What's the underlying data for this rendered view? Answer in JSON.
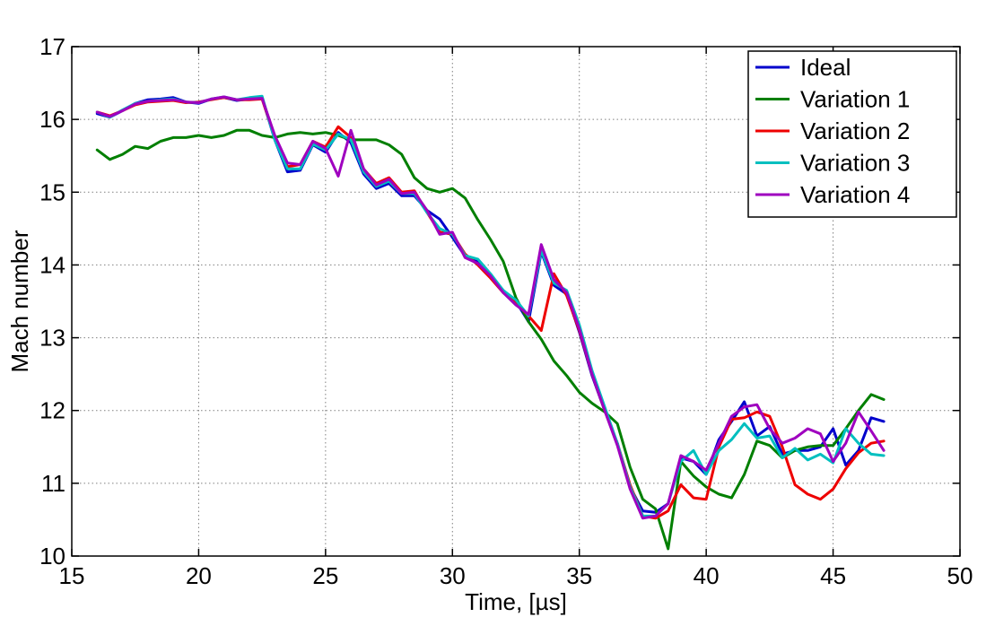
{
  "chart_data": {
    "type": "line",
    "xlabel": "Time, [µs]",
    "ylabel": "Mach number",
    "xlim": [
      15,
      50
    ],
    "ylim": [
      10,
      17
    ],
    "xticks": [
      15,
      20,
      25,
      30,
      35,
      40,
      45,
      50
    ],
    "yticks": [
      10,
      11,
      12,
      13,
      14,
      15,
      16,
      17
    ],
    "grid": true,
    "legend_position": "top-right",
    "series": [
      {
        "name": "Ideal",
        "color": "#0000cc",
        "x": [
          16.0,
          16.5,
          17.0,
          17.5,
          18.0,
          18.5,
          19.0,
          19.5,
          20.0,
          20.5,
          21.0,
          21.5,
          22.0,
          22.5,
          23.0,
          23.5,
          24.0,
          24.5,
          25.0,
          25.5,
          26.0,
          26.5,
          27.0,
          27.5,
          28.0,
          28.5,
          29.0,
          29.5,
          30.0,
          30.5,
          31.0,
          31.5,
          32.0,
          32.5,
          33.0,
          33.5,
          34.0,
          34.5,
          35.0,
          35.5,
          36.0,
          36.5,
          37.0,
          37.5,
          38.0,
          38.5,
          39.0,
          39.5,
          40.0,
          40.5,
          41.0,
          41.5,
          42.0,
          42.5,
          43.0,
          43.5,
          44.0,
          44.5,
          45.0,
          45.5,
          46.0,
          46.5,
          47.0
        ],
        "y": [
          16.08,
          16.03,
          16.12,
          16.22,
          16.27,
          16.28,
          16.3,
          16.24,
          16.22,
          16.28,
          16.3,
          16.26,
          16.28,
          16.3,
          15.72,
          15.28,
          15.3,
          15.65,
          15.55,
          15.82,
          15.68,
          15.25,
          15.05,
          15.12,
          14.95,
          14.95,
          14.75,
          14.63,
          14.38,
          14.12,
          14.05,
          13.85,
          13.65,
          13.5,
          13.22,
          14.18,
          13.72,
          13.6,
          13.08,
          12.48,
          12.0,
          11.55,
          10.95,
          10.62,
          10.6,
          10.72,
          11.35,
          11.3,
          11.12,
          11.6,
          11.85,
          12.12,
          11.65,
          11.78,
          11.4,
          11.45,
          11.45,
          11.5,
          11.75,
          11.25,
          11.45,
          11.9,
          11.85
        ]
      },
      {
        "name": "Variation 1",
        "color": "#007f00",
        "x": [
          16.0,
          16.5,
          17.0,
          17.5,
          18.0,
          18.5,
          19.0,
          19.5,
          20.0,
          20.5,
          21.0,
          21.5,
          22.0,
          22.5,
          23.0,
          23.5,
          24.0,
          24.5,
          25.0,
          25.5,
          26.0,
          26.5,
          27.0,
          27.5,
          28.0,
          28.5,
          29.0,
          29.5,
          30.0,
          30.5,
          31.0,
          31.5,
          32.0,
          32.5,
          33.0,
          33.5,
          34.0,
          34.5,
          35.0,
          35.5,
          36.0,
          36.5,
          37.0,
          37.5,
          38.0,
          38.5,
          39.0,
          39.5,
          40.0,
          40.5,
          41.0,
          41.5,
          42.0,
          42.5,
          43.0,
          43.5,
          44.0,
          44.5,
          45.0,
          45.5,
          46.0,
          46.5,
          47.0
        ],
        "y": [
          15.58,
          15.45,
          15.52,
          15.63,
          15.6,
          15.7,
          15.75,
          15.75,
          15.78,
          15.75,
          15.78,
          15.85,
          15.85,
          15.78,
          15.75,
          15.8,
          15.82,
          15.8,
          15.82,
          15.78,
          15.72,
          15.72,
          15.72,
          15.65,
          15.52,
          15.2,
          15.05,
          15.0,
          15.05,
          14.92,
          14.62,
          14.35,
          14.05,
          13.55,
          13.22,
          12.98,
          12.68,
          12.48,
          12.25,
          12.1,
          11.98,
          11.82,
          11.22,
          10.78,
          10.65,
          10.1,
          11.3,
          11.1,
          10.95,
          10.85,
          10.8,
          11.12,
          11.58,
          11.52,
          11.35,
          11.45,
          11.5,
          11.52,
          11.52,
          11.75,
          12.0,
          12.22,
          12.15
        ]
      },
      {
        "name": "Variation 2",
        "color": "#ee0000",
        "x": [
          16.0,
          16.5,
          17.0,
          17.5,
          18.0,
          18.5,
          19.0,
          19.5,
          20.0,
          20.5,
          21.0,
          21.5,
          22.0,
          22.5,
          23.0,
          23.5,
          24.0,
          24.5,
          25.0,
          25.5,
          26.0,
          26.5,
          27.0,
          27.5,
          28.0,
          28.5,
          29.0,
          29.5,
          30.0,
          30.5,
          31.0,
          31.5,
          32.0,
          32.5,
          33.0,
          33.5,
          34.0,
          34.5,
          35.0,
          35.5,
          36.0,
          36.5,
          37.0,
          37.5,
          38.0,
          38.5,
          39.0,
          39.5,
          40.0,
          40.5,
          41.0,
          41.5,
          42.0,
          42.5,
          43.0,
          43.5,
          44.0,
          44.5,
          45.0,
          45.5,
          46.0,
          46.5,
          47.0
        ],
        "y": [
          16.1,
          16.05,
          16.12,
          16.2,
          16.24,
          16.25,
          16.26,
          16.23,
          16.24,
          16.27,
          16.3,
          16.27,
          16.27,
          16.28,
          15.75,
          15.35,
          15.38,
          15.7,
          15.62,
          15.9,
          15.75,
          15.32,
          15.12,
          15.2,
          15.0,
          15.02,
          14.72,
          14.45,
          14.42,
          14.15,
          14.0,
          13.82,
          13.62,
          13.48,
          13.3,
          13.1,
          13.88,
          13.58,
          13.1,
          12.5,
          12.0,
          11.55,
          10.98,
          10.55,
          10.52,
          10.62,
          10.98,
          10.8,
          10.78,
          11.5,
          11.88,
          11.9,
          11.98,
          11.92,
          11.5,
          10.98,
          10.85,
          10.78,
          10.92,
          11.2,
          11.42,
          11.55,
          11.58
        ]
      },
      {
        "name": "Variation 3",
        "color": "#00bfbf",
        "x": [
          16.0,
          16.5,
          17.0,
          17.5,
          18.0,
          18.5,
          19.0,
          19.5,
          20.0,
          20.5,
          21.0,
          21.5,
          22.0,
          22.5,
          23.0,
          23.5,
          24.0,
          24.5,
          25.0,
          25.5,
          26.0,
          26.5,
          27.0,
          27.5,
          28.0,
          28.5,
          29.0,
          29.5,
          30.0,
          30.5,
          31.0,
          31.5,
          32.0,
          32.5,
          33.0,
          33.5,
          34.0,
          34.5,
          35.0,
          35.5,
          36.0,
          36.5,
          37.0,
          37.5,
          38.0,
          38.5,
          39.0,
          39.5,
          40.0,
          40.5,
          41.0,
          41.5,
          42.0,
          42.5,
          43.0,
          43.5,
          44.0,
          44.5,
          45.0,
          45.5,
          46.0,
          46.5,
          47.0
        ],
        "y": [
          16.1,
          16.03,
          16.13,
          16.22,
          16.25,
          16.27,
          16.28,
          16.24,
          16.23,
          16.28,
          16.31,
          16.27,
          16.3,
          16.32,
          15.72,
          15.32,
          15.32,
          15.66,
          15.58,
          15.8,
          15.72,
          15.28,
          15.08,
          15.15,
          14.98,
          14.98,
          14.72,
          14.5,
          14.42,
          14.13,
          14.08,
          13.88,
          13.65,
          13.52,
          13.3,
          14.2,
          13.75,
          13.65,
          13.18,
          12.55,
          12.05,
          11.55,
          10.95,
          10.55,
          10.55,
          10.72,
          11.3,
          11.45,
          11.12,
          11.45,
          11.6,
          11.82,
          11.62,
          11.65,
          11.35,
          11.48,
          11.32,
          11.4,
          11.28,
          11.75,
          11.55,
          11.4,
          11.38
        ]
      },
      {
        "name": "Variation 4",
        "color": "#9f00bf",
        "x": [
          16.0,
          16.5,
          17.0,
          17.5,
          18.0,
          18.5,
          19.0,
          19.5,
          20.0,
          20.5,
          21.0,
          21.5,
          22.0,
          22.5,
          23.0,
          23.5,
          24.0,
          24.5,
          25.0,
          25.5,
          26.0,
          26.5,
          27.0,
          27.5,
          28.0,
          28.5,
          29.0,
          29.5,
          30.0,
          30.5,
          31.0,
          31.5,
          32.0,
          32.5,
          33.0,
          33.5,
          34.0,
          34.5,
          35.0,
          35.5,
          36.0,
          36.5,
          37.0,
          37.5,
          38.0,
          38.5,
          39.0,
          39.5,
          40.0,
          40.5,
          41.0,
          41.5,
          42.0,
          42.5,
          43.0,
          43.5,
          44.0,
          44.5,
          45.0,
          45.5,
          46.0,
          46.5,
          47.0
        ],
        "y": [
          16.1,
          16.04,
          16.12,
          16.21,
          16.25,
          16.26,
          16.27,
          16.24,
          16.23,
          16.28,
          16.31,
          16.27,
          16.28,
          16.29,
          15.78,
          15.4,
          15.38,
          15.7,
          15.6,
          15.22,
          15.85,
          15.32,
          15.1,
          15.18,
          14.98,
          15.0,
          14.75,
          14.42,
          14.45,
          14.1,
          14.02,
          13.85,
          13.62,
          13.45,
          13.32,
          14.28,
          13.8,
          13.62,
          13.12,
          12.5,
          12.0,
          11.52,
          10.92,
          10.52,
          10.55,
          10.72,
          11.38,
          11.3,
          11.18,
          11.55,
          11.92,
          12.05,
          12.08,
          11.75,
          11.55,
          11.62,
          11.75,
          11.68,
          11.3,
          11.55,
          11.98,
          11.72,
          11.45
        ]
      }
    ]
  }
}
